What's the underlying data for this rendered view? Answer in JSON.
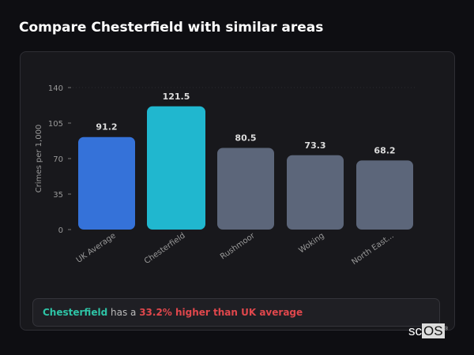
{
  "title": "Compare Chesterfield with similar areas",
  "chart_data": {
    "type": "bar",
    "title": "",
    "xlabel": "",
    "ylabel": "Crimes per 1,000",
    "ylim": [
      0,
      140
    ],
    "yticks": [
      0,
      35,
      70,
      105,
      140
    ],
    "categories": [
      "UK Average",
      "Chesterfield",
      "Rushmoor",
      "Woking",
      "North East..."
    ],
    "values": [
      91.2,
      121.5,
      80.5,
      73.3,
      68.2
    ],
    "data_labels": [
      "91.2",
      "121.5",
      "80.5",
      "73.3",
      "68.2"
    ],
    "colors": [
      "#3572d9",
      "#20b7cf",
      "#5c667a",
      "#5c667a",
      "#5c667a"
    ],
    "grid": false
  },
  "footer": {
    "area": "Chesterfield",
    "middle": " has a ",
    "comparison": "33.2% higher than UK average"
  },
  "logo": {
    "text_a": "sc",
    "text_b": "OS",
    "mark": "®"
  }
}
